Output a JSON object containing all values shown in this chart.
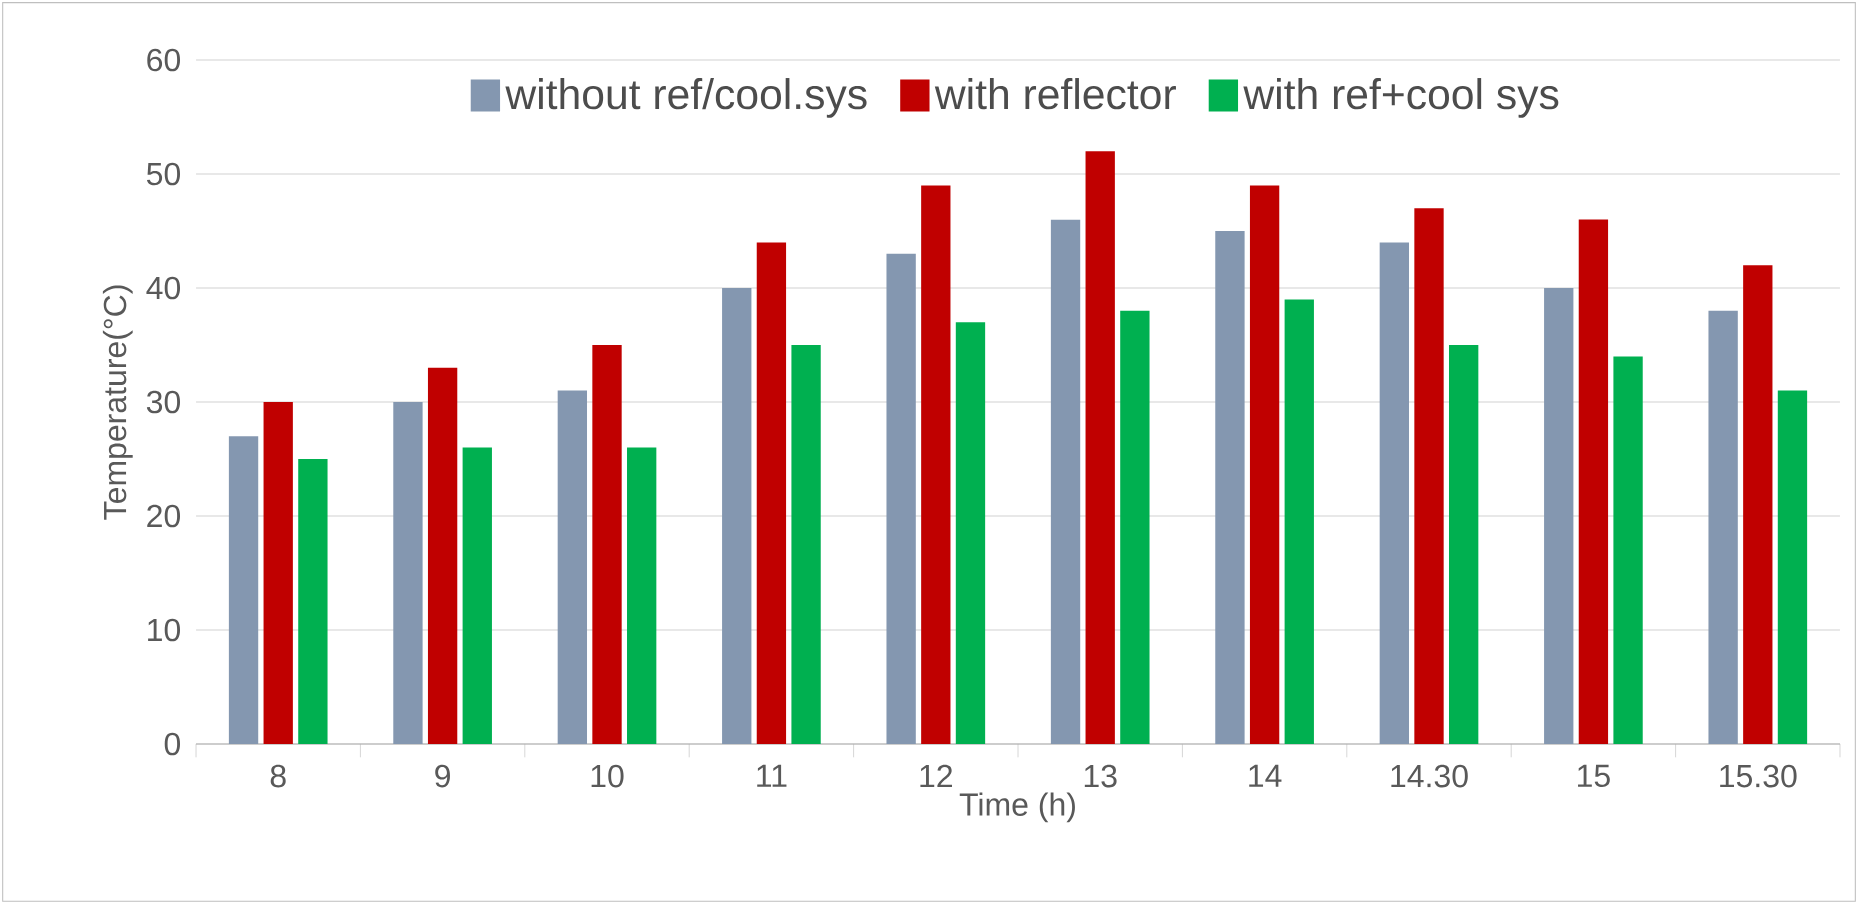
{
  "chart_data": {
    "type": "bar",
    "xlabel": "Time (h)",
    "ylabel": "Temperature(°C)",
    "categories": [
      "8",
      "9",
      "10",
      "11",
      "12",
      "13",
      "14",
      "14.30",
      "15",
      "15.30"
    ],
    "series": [
      {
        "name": "without ref/cool.sys",
        "color": "#8497b0",
        "values": [
          27,
          30,
          31,
          40,
          43,
          46,
          45,
          44,
          40,
          38
        ]
      },
      {
        "name": "with reflector",
        "color": "#c00000",
        "values": [
          30,
          33,
          35,
          44,
          49,
          52,
          49,
          47,
          46,
          42
        ]
      },
      {
        "name": "with ref+cool sys",
        "color": "#00b050",
        "values": [
          25,
          26,
          26,
          35,
          37,
          38,
          39,
          35,
          34,
          31
        ]
      }
    ],
    "ylim": [
      0,
      60
    ],
    "yticks": [
      0,
      10,
      20,
      30,
      40,
      50,
      60
    ],
    "grid": "y",
    "legend": "top"
  }
}
